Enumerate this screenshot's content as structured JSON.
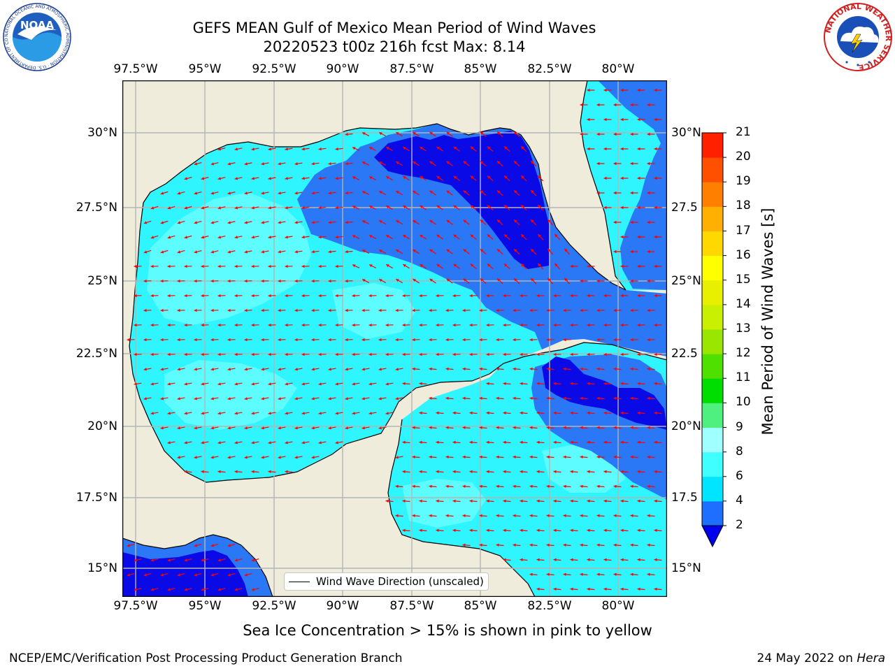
{
  "title_line1": "GEFS MEAN Gulf of Mexico Mean Period of Wind Waves",
  "title_line2": "20220523 t00z 216h fcst   Max: 8.14",
  "lon_ticks": [
    "97.5°W",
    "95°W",
    "92.5°W",
    "90°W",
    "87.5°W",
    "85°W",
    "82.5°W",
    "80°W"
  ],
  "lat_ticks_left": [
    "30°N",
    "27.5°N",
    "25°N",
    "22.5°N",
    "20°N",
    "17.5°N",
    "15°N"
  ],
  "lat_ticks_right": [
    "30°N",
    "27.5",
    "25°N",
    "22.5",
    "20°N",
    "17.5",
    "15°N"
  ],
  "colorbar": {
    "label": "Mean Period of Wind Waves [s]",
    "levels": [
      "2",
      "4",
      "6",
      "8",
      "9",
      "10",
      "11",
      "12",
      "13",
      "14",
      "15",
      "16",
      "17",
      "18",
      "19",
      "20",
      "21"
    ],
    "colors": [
      "#1e6fff",
      "#00e5ff",
      "#40ffff",
      "#a0ffff",
      "#50f080",
      "#00dd00",
      "#50e000",
      "#9ae600",
      "#c8f000",
      "#e8f000",
      "#ffff00",
      "#ffd800",
      "#ffb000",
      "#ff8000",
      "#ff5000",
      "#ff2000"
    ],
    "under_color": "#0000ee"
  },
  "legend_label": "Wind Wave Direction (unscaled)",
  "subtitle": "Sea Ice Concentration > 15% is shown in pink to yellow",
  "footer_left": "NCEP/EMC/Verification Post Processing Product Generation Branch",
  "footer_right_date": "24 May 2022 on",
  "footer_right_host": "Hera",
  "logos": {
    "noaa_text": "NOAA",
    "noaa_ring": "NATIONAL OCEANIC AND ATMOSPHERIC ADMINISTRATION · U.S. DEPARTMENT OF COMMERCE",
    "nws_ring": "NATIONAL WEATHER SERVICE"
  },
  "map_colors": {
    "land": "#efecdc",
    "ocean_light": "#2ef5ff",
    "ocean_pale": "#5cfcff",
    "ocean_mid": "#2a78f5",
    "ocean_dark": "#0a0ae6",
    "arrow": "#ff0000",
    "grid": "#b4b4b4"
  }
}
